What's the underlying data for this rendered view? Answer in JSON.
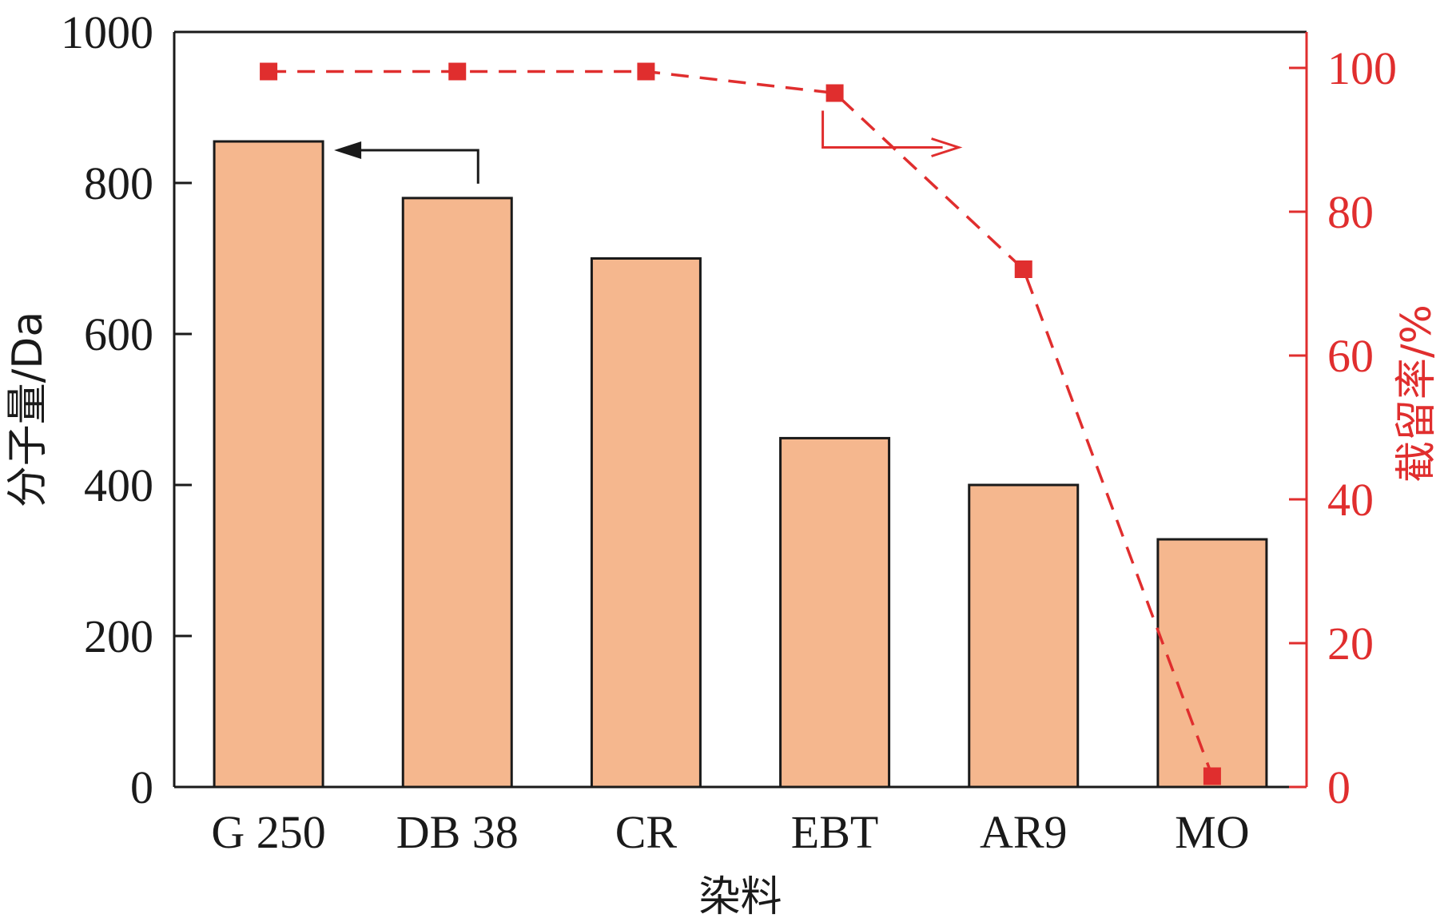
{
  "chart_data": {
    "type": "bar",
    "categories": [
      "G 250",
      "DB 38",
      "CR",
      "EBT",
      "AR9",
      "MO"
    ],
    "xlabel": "染料",
    "series": [
      {
        "type": "bar",
        "axis": "left",
        "values": [
          855,
          780,
          700,
          462,
          400,
          328
        ],
        "color": "#F5B78E"
      },
      {
        "type": "line",
        "axis": "right",
        "values": [
          99.5,
          99.5,
          99.5,
          96.5,
          72,
          1.5
        ],
        "color": "#E02E2E",
        "line_style": "dashed",
        "marker": "square"
      }
    ],
    "y_left": {
      "label": "分子量/Da",
      "ylim": [
        0,
        1000
      ],
      "ticks": [
        "0",
        "200",
        "400",
        "600",
        "800",
        "1000"
      ],
      "color": "#1a1a1a"
    },
    "y_right": {
      "label": "截留率/%",
      "ylim": [
        0,
        105
      ],
      "ticks": [
        "0",
        "20",
        "40",
        "60",
        "80",
        "100"
      ],
      "color": "#E02E2E"
    },
    "grid": false,
    "annotations": [
      {
        "type": "arrow",
        "points_to": "left-axis",
        "color": "#1a1a1a"
      },
      {
        "type": "arrow",
        "points_to": "right-axis",
        "color": "#E02E2E"
      }
    ]
  }
}
